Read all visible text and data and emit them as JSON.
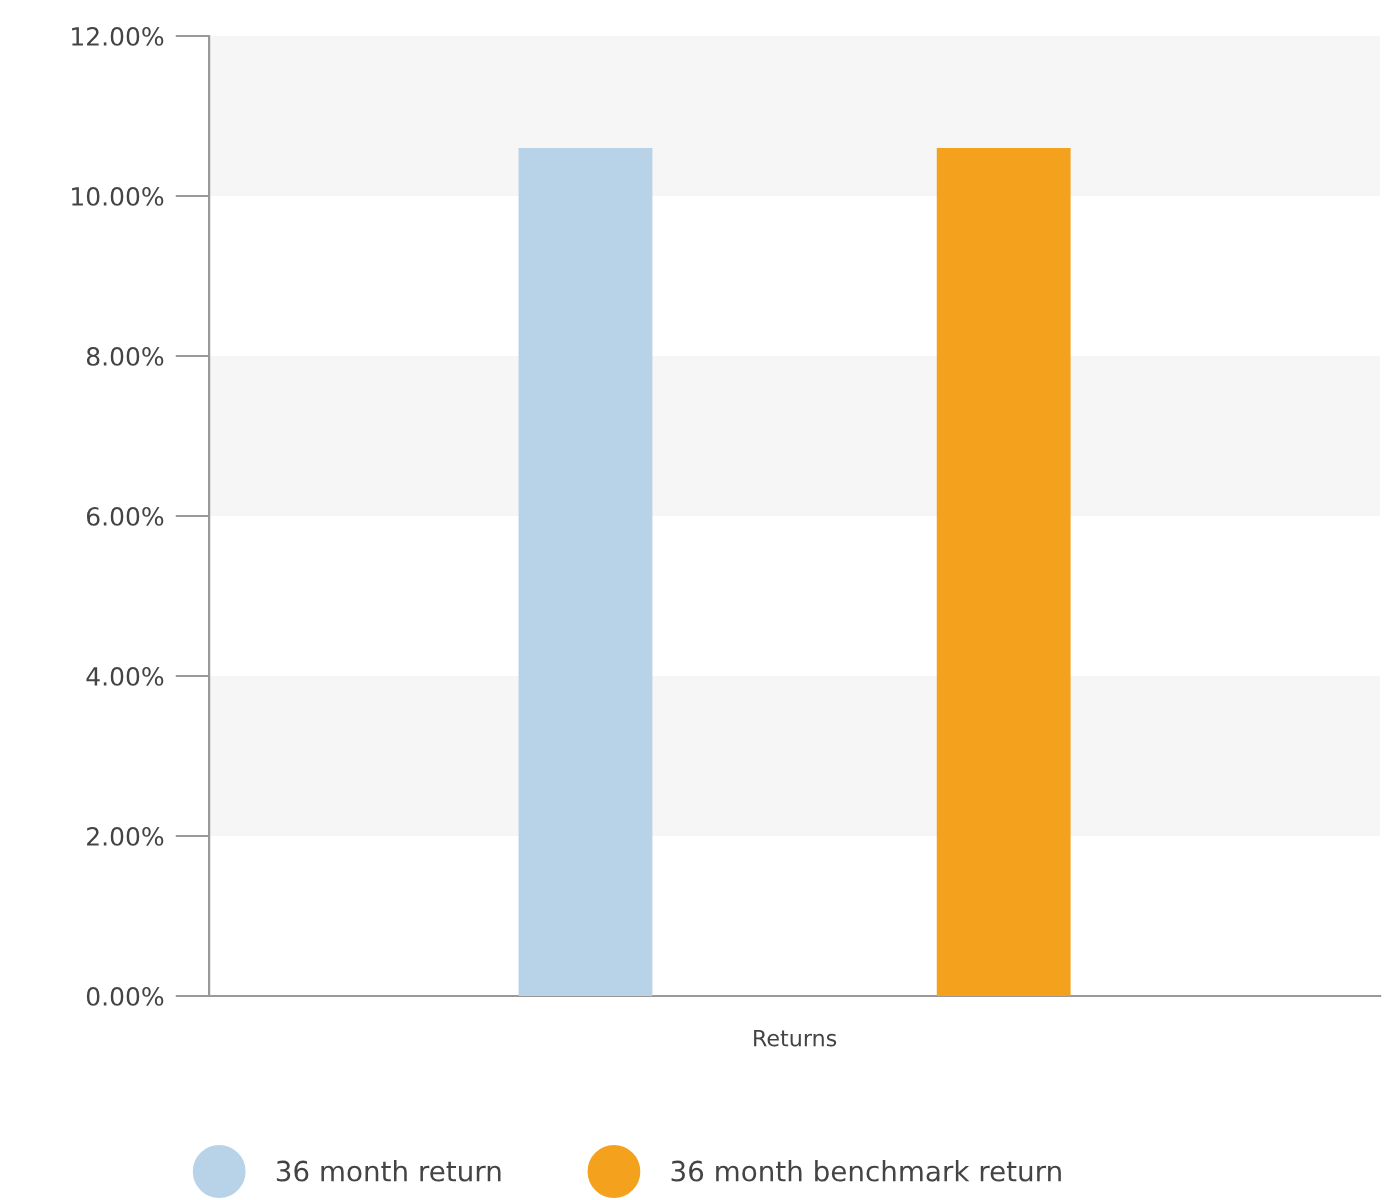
{
  "chart_data": {
    "type": "bar",
    "categories": [
      "Returns"
    ],
    "series": [
      {
        "name": "36 month return",
        "color": "#b8d3e8",
        "values": [
          10.6
        ]
      },
      {
        "name": "36 month benchmark return",
        "color": "#f4a21e",
        "values": [
          10.6
        ]
      }
    ],
    "ylim": [
      0,
      12
    ],
    "yticks": [
      {
        "value": 0,
        "label": "0.00%"
      },
      {
        "value": 2,
        "label": "2.00%"
      },
      {
        "value": 4,
        "label": "4.00%"
      },
      {
        "value": 6,
        "label": "6.00%"
      },
      {
        "value": 8,
        "label": "8.00%"
      },
      {
        "value": 10,
        "label": "10.00%"
      },
      {
        "value": 12,
        "label": "12.00%"
      }
    ],
    "bands": [
      {
        "axis": "y",
        "from": 2,
        "to": 4,
        "color": "#f6f6f6"
      },
      {
        "axis": "y",
        "from": 6,
        "to": 8,
        "color": "#f6f6f6"
      },
      {
        "axis": "y",
        "from": 10,
        "to": 12,
        "color": "#f6f6f6"
      }
    ],
    "grid": false,
    "legend": "bottom"
  }
}
